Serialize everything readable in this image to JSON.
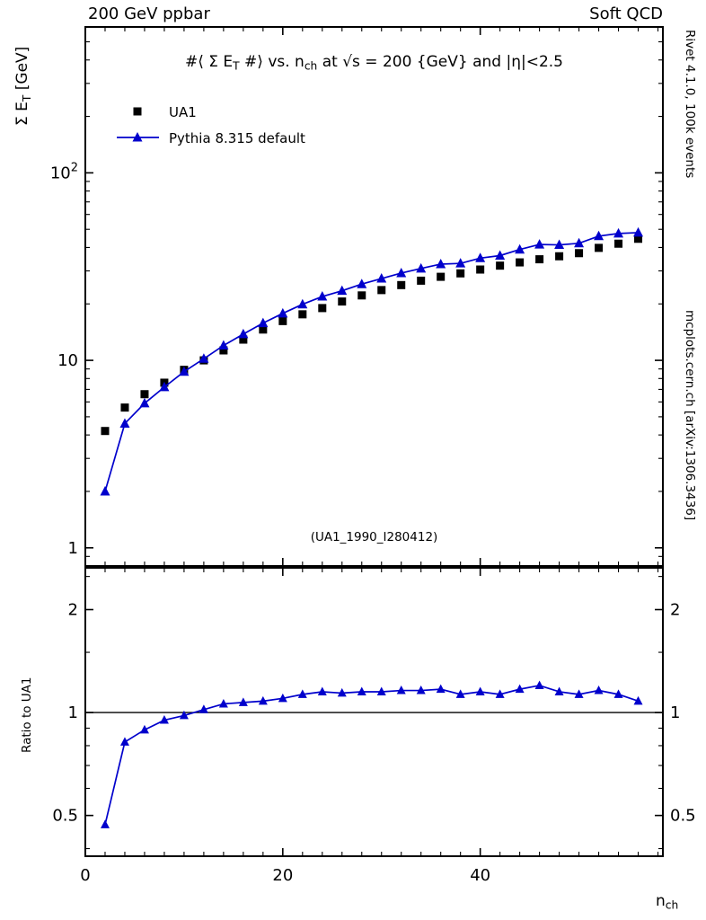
{
  "chart_data": {
    "type": "line+scatter with ratio panel",
    "top_left_label": "200 GeV ppbar",
    "top_right_label": "Soft QCD",
    "title": "#⟨ Σ E_T #⟩ vs. n_ch at √s = 200 {GeV} and |η|<2.5",
    "title_parts": [
      {
        "t": "#⟨ Σ E"
      },
      {
        "t": "T",
        "sub": true
      },
      {
        "t": " #⟩ vs. n"
      },
      {
        "t": "ch",
        "sub": true
      },
      {
        "t": " at √s = 200 {GeV} and |η|<2.5"
      }
    ],
    "ylabel": "Σ E_T [GeV]",
    "ylabel_parts": [
      {
        "t": "Σ E"
      },
      {
        "t": "T",
        "sub": true
      },
      {
        "t": " [GeV]"
      }
    ],
    "xlabel": "n_ch",
    "xlabel_parts": [
      {
        "t": "n"
      },
      {
        "t": "ch",
        "sub": true
      }
    ],
    "ratio_ylabel": "Ratio to UA1",
    "watermark": "(UA1_1990_I280412)",
    "right_label_top": "Rivet 4.1.0, 100k events",
    "right_label_bottom": "mcplots.cern.ch [arXiv:1306.3436]",
    "colors": {
      "gray_text": "#808080",
      "watermark": "#b4b4b4",
      "frame": "#000000"
    },
    "x": [
      2,
      4,
      6,
      8,
      10,
      12,
      14,
      16,
      18,
      20,
      22,
      24,
      26,
      28,
      30,
      32,
      34,
      36,
      38,
      40,
      42,
      44,
      46,
      48,
      50,
      52,
      54,
      56
    ],
    "series": [
      {
        "name": "UA1",
        "marker": "square",
        "color": "#000000",
        "line": false,
        "values": [
          4.2,
          5.6,
          6.6,
          7.6,
          8.9,
          10.0,
          11.3,
          12.9,
          14.6,
          16.2,
          17.6,
          19.0,
          20.6,
          22.2,
          23.7,
          25.2,
          26.6,
          27.9,
          29.1,
          30.5,
          32.0,
          33.3,
          34.6,
          35.9,
          37.3,
          39.8,
          41.9,
          44.5
        ]
      },
      {
        "name": "Pythia 8.315 default",
        "marker": "triangle",
        "color": "#0000cc",
        "line": true,
        "values": [
          2.0,
          4.6,
          5.9,
          7.2,
          8.7,
          10.2,
          12.0,
          13.8,
          15.8,
          17.8,
          19.9,
          21.9,
          23.5,
          25.5,
          27.3,
          29.2,
          30.9,
          32.6,
          32.9,
          35.1,
          36.2,
          39.0,
          41.5,
          41.3,
          42.1,
          46.0,
          47.5,
          48.0
        ]
      }
    ],
    "ratio": {
      "series": "Pythia 8.315 default",
      "reference": 1,
      "values": [
        0.47,
        0.82,
        0.89,
        0.95,
        0.98,
        1.02,
        1.06,
        1.07,
        1.08,
        1.1,
        1.13,
        1.15,
        1.14,
        1.15,
        1.15,
        1.16,
        1.16,
        1.17,
        1.13,
        1.15,
        1.13,
        1.17,
        1.2,
        1.15,
        1.13,
        1.16,
        1.13,
        1.08
      ]
    },
    "axes": {
      "x": {
        "min": 0,
        "max": 58.5,
        "major_ticks": [
          0,
          20,
          40
        ],
        "minor_step": 2,
        "tick_labels": [
          "0",
          "20",
          "40"
        ]
      },
      "y_main": {
        "scale": "log",
        "min": 0.8,
        "max": 600,
        "labeled_ticks": [
          1,
          10,
          100
        ],
        "tick_labels": [
          "1",
          "10",
          "10^2"
        ]
      },
      "y_ratio": {
        "scale": "log",
        "min": 0.38,
        "max": 2.65,
        "labeled_ticks": [
          0.5,
          1,
          2
        ],
        "tick_labels": [
          "0.5",
          "1",
          "2"
        ],
        "minor_ticks": [
          0.4,
          0.6,
          0.7,
          0.8,
          0.9,
          1.5,
          2.5
        ]
      }
    }
  }
}
